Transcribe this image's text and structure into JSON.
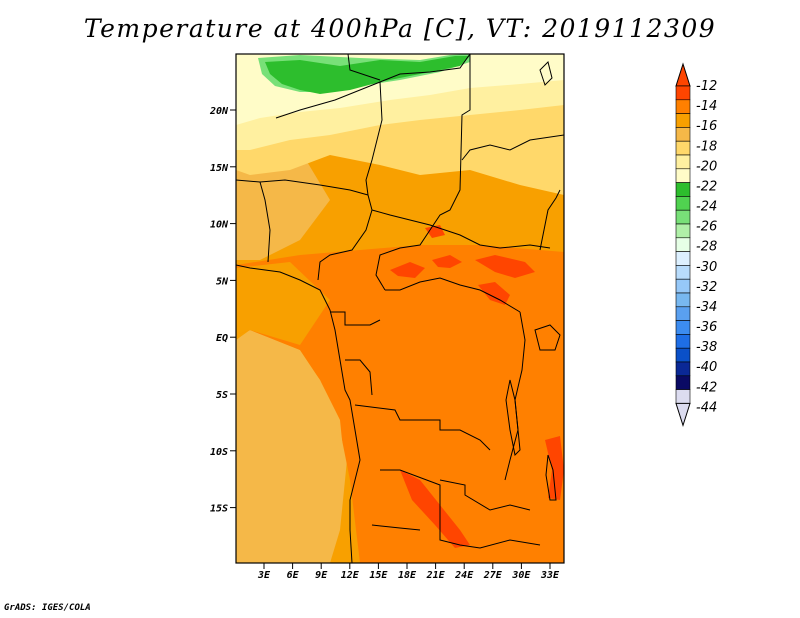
{
  "title": "Temperature at 400hPa [C], VT: 2019112309",
  "credit": "GrADS: IGES/COLA",
  "axes": {
    "lat_ticks": [
      "20N",
      "15N",
      "10N",
      "5N",
      "EQ",
      "5S",
      "10S",
      "15S"
    ],
    "lon_ticks": [
      "3E",
      "6E",
      "9E",
      "12E",
      "15E",
      "18E",
      "21E",
      "24E",
      "27E",
      "30E",
      "33E"
    ]
  },
  "colorbar": {
    "labels": [
      "-12",
      "-14",
      "-16",
      "-18",
      "-20",
      "-22",
      "-24",
      "-26",
      "-28",
      "-30",
      "-32",
      "-34",
      "-36",
      "-38",
      "-40",
      "-42",
      "-44"
    ],
    "colors": [
      "#ff4500",
      "#ff8000",
      "#f8a000",
      "#f5b848",
      "#ffd86a",
      "#fff0a0",
      "#fffcc8",
      "#2dbe2d",
      "#50d250",
      "#78e078",
      "#b0f0a8",
      "#e6ffe6",
      "#ddf0ff",
      "#b8dcfc",
      "#96c8f8",
      "#78b8f0",
      "#5aa0f0",
      "#3c8cf0",
      "#1e6ee6",
      "#0a50c8",
      "#0a2896",
      "#0a0a64",
      "#dcdcf0"
    ],
    "top_color": "#ff4500",
    "bottom_color": "#dcdcf0"
  }
}
